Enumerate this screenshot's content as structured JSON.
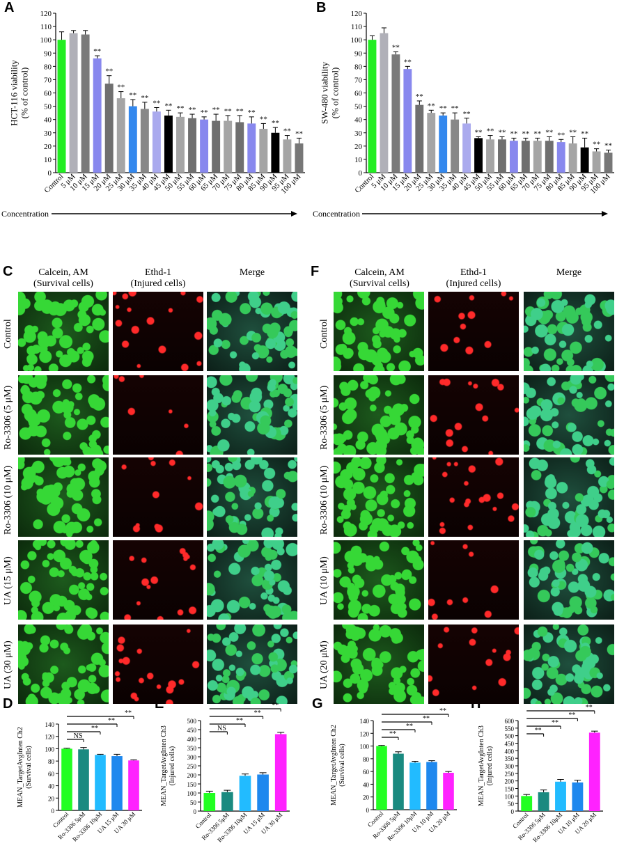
{
  "panels": {
    "A": "A",
    "B": "B",
    "C": "C",
    "D": "D",
    "E": "E",
    "F": "F",
    "G": "G",
    "H": "H"
  },
  "micrographs": {
    "headers": [
      "Calcein, AM\n(Survival cells)",
      "Ethd-1\n(Injured cells)",
      "Merge"
    ],
    "C_rows": [
      "Control",
      "Ro-3306 (5 μM)",
      "Ro-3306 (10 μM)",
      "UA (15 μM)",
      "UA (30 μM)"
    ],
    "F_rows": [
      "Control",
      "Ro-3306 (5 μM)",
      "Ro-3306 (10 μM)",
      "UA (10 μM)",
      "UA (20 μM)"
    ]
  },
  "chart_data": [
    {
      "id": "A",
      "type": "bar",
      "ylabel": "HCT-116 viability\n(% of control)",
      "xlabel": "Concentration",
      "ylim": [
        0,
        120
      ],
      "yticks": [
        0,
        10,
        20,
        30,
        40,
        50,
        60,
        70,
        80,
        90,
        100,
        110,
        120
      ],
      "categories": [
        "Control",
        "5 μM",
        "10 μM",
        "15 μM",
        "20 μM",
        "25 μM",
        "30 μM",
        "35 μM",
        "40 μM",
        "45 μM",
        "50 μM",
        "55 μM",
        "60 μM",
        "65 μM",
        "70 μM",
        "75 μM",
        "80 μM",
        "85 μM",
        "90 μM",
        "95 μM",
        "100 μM"
      ],
      "values": [
        100,
        105,
        104,
        86,
        67,
        56,
        50,
        48,
        46,
        43,
        42,
        41,
        40,
        39,
        39,
        38,
        37,
        33,
        30,
        25,
        22
      ],
      "errors": [
        6,
        2,
        3,
        2,
        6,
        5,
        5,
        5,
        3,
        4,
        3,
        3,
        2,
        5,
        4,
        5,
        5,
        4,
        4,
        3,
        4
      ],
      "significance": [
        "",
        "",
        "",
        "**",
        "**",
        "**",
        "**",
        "**",
        "**",
        "**",
        "**",
        "**",
        "**",
        "**",
        "**",
        "**",
        "**",
        "**",
        "**",
        "**",
        "**"
      ],
      "colors": [
        "#22ee22",
        "#b0b0b8",
        "#7a7a7a",
        "#8888ee",
        "#707070",
        "#a5a5a5",
        "#3388ee",
        "#888888",
        "#aaaaee",
        "#000000",
        "#a5a5a5",
        "#6f6f6f",
        "#8888ee",
        "#6f6f6f",
        "#a5a5a5",
        "#6f6f6f",
        "#8888ee",
        "#a5a5a5",
        "#000000",
        "#a5a5a5",
        "#777777"
      ]
    },
    {
      "id": "B",
      "type": "bar",
      "ylabel": "SW-480 viability\n(% of control)",
      "xlabel": "Concentration",
      "ylim": [
        0,
        120
      ],
      "yticks": [
        0,
        10,
        20,
        30,
        40,
        50,
        60,
        70,
        80,
        90,
        100,
        110,
        120
      ],
      "categories": [
        "Control",
        "5 μM",
        "10 μM",
        "15 μM",
        "20 μM",
        "25 μM",
        "30 μM",
        "35 μM",
        "40 μM",
        "45 μM",
        "50 μM",
        "55 μM",
        "60 μM",
        "65 μM",
        "70 μM",
        "75 μM",
        "80 μM",
        "85 μM",
        "90 μM",
        "95 μM",
        "100 μM"
      ],
      "values": [
        100,
        105,
        89,
        78,
        51,
        45,
        43,
        40,
        37,
        26,
        25,
        25,
        24,
        24,
        24,
        24,
        23,
        22,
        19,
        16,
        15
      ],
      "errors": [
        3,
        4,
        2,
        2,
        3,
        2,
        2,
        5,
        4,
        1,
        3,
        2,
        2,
        2,
        2,
        3,
        2,
        5,
        7,
        2,
        2
      ],
      "significance": [
        "",
        "",
        "**",
        "**",
        "**",
        "**",
        "**",
        "**",
        "**",
        "**",
        "**",
        "**",
        "**",
        "**",
        "**",
        "**",
        "**",
        "**",
        "**",
        "**",
        "**"
      ],
      "colors": [
        "#22ee22",
        "#b0b0b8",
        "#7a7a7a",
        "#8888ee",
        "#707070",
        "#a5a5a5",
        "#3388ee",
        "#888888",
        "#aaaaee",
        "#000000",
        "#a5a5a5",
        "#6f6f6f",
        "#8888ee",
        "#6f6f6f",
        "#a5a5a5",
        "#6f6f6f",
        "#8888ee",
        "#a5a5a5",
        "#000000",
        "#a5a5a5",
        "#777777"
      ]
    },
    {
      "id": "D",
      "type": "bar",
      "ylabel": "MEAN_TargetAvgInten Ch2\n(Survival cells)",
      "ylim": [
        0,
        140
      ],
      "yticks": [
        0,
        20,
        40,
        60,
        80,
        100,
        120,
        140
      ],
      "categories": [
        "Control",
        "Ro-3306 5μM",
        "Ro-3306 10μM",
        "UA 15 μM",
        "UA 30 μM"
      ],
      "values": [
        100,
        99,
        90,
        88,
        81
      ],
      "errors": [
        1,
        3,
        1,
        3,
        1
      ],
      "colors": [
        "#22ff22",
        "#1a8a80",
        "#22bbff",
        "#1e88ee",
        "#ff22ff"
      ],
      "brackets": [
        {
          "to": 1,
          "label": "NS"
        },
        {
          "to": 2,
          "label": "**"
        },
        {
          "to": 3,
          "label": "**"
        },
        {
          "to": 4,
          "label": "**"
        }
      ]
    },
    {
      "id": "E",
      "type": "bar",
      "ylabel": "MEAN_TargetAvgInten Ch3\n(Injured cells)",
      "ylim": [
        0,
        500
      ],
      "yticks": [
        0,
        50,
        100,
        150,
        200,
        250,
        300,
        350,
        400,
        450,
        500
      ],
      "categories": [
        "Control",
        "Ro-3306 5μM",
        "Ro-3306 10μM",
        "UA 15 μM",
        "UA 30 μM"
      ],
      "values": [
        100,
        105,
        195,
        202,
        425
      ],
      "errors": [
        10,
        10,
        10,
        10,
        10
      ],
      "colors": [
        "#22ff22",
        "#1a8a80",
        "#22bbff",
        "#1e88ee",
        "#ff22ff"
      ],
      "brackets": [
        {
          "to": 1,
          "label": "NS"
        },
        {
          "to": 2,
          "label": "**"
        },
        {
          "to": 3,
          "label": "**"
        },
        {
          "to": 4,
          "label": "**"
        }
      ]
    },
    {
      "id": "G",
      "type": "bar",
      "ylabel": "MEAN_TargetAvgInten Ch2\n(Survival cells)",
      "ylim": [
        0,
        140
      ],
      "yticks": [
        0,
        20,
        40,
        60,
        80,
        100,
        120,
        140
      ],
      "categories": [
        "Control",
        "Ro-3306 5μM",
        "Ro-3306 10μM",
        "UA 10 μM",
        "UA 20 μM"
      ],
      "values": [
        100,
        88,
        74,
        75,
        58
      ],
      "errors": [
        1,
        3,
        2,
        2,
        2
      ],
      "colors": [
        "#22ff22",
        "#1a8a80",
        "#22bbff",
        "#1e88ee",
        "#ff22ff"
      ],
      "brackets": [
        {
          "to": 1,
          "label": "**"
        },
        {
          "to": 2,
          "label": "**"
        },
        {
          "to": 3,
          "label": "**"
        },
        {
          "to": 4,
          "label": "**"
        }
      ]
    },
    {
      "id": "H",
      "type": "bar",
      "ylabel": "MEAN_TargetAvgInten Ch3\n(Injured cells)",
      "ylim": [
        0,
        600
      ],
      "yticks": [
        0,
        50,
        100,
        150,
        200,
        250,
        300,
        350,
        400,
        450,
        500,
        550,
        600
      ],
      "categories": [
        "Control",
        "Ro-3306 5μM",
        "Ro-3306 10μM",
        "UA 10 μM",
        "UA 20 μM"
      ],
      "values": [
        100,
        125,
        195,
        190,
        520
      ],
      "errors": [
        10,
        15,
        15,
        15,
        10
      ],
      "colors": [
        "#22ff22",
        "#1a8a80",
        "#22bbff",
        "#1e88ee",
        "#ff22ff"
      ],
      "brackets": [
        {
          "to": 1,
          "label": "**"
        },
        {
          "to": 2,
          "label": "**"
        },
        {
          "to": 3,
          "label": "**"
        },
        {
          "to": 4,
          "label": "**"
        }
      ]
    }
  ]
}
